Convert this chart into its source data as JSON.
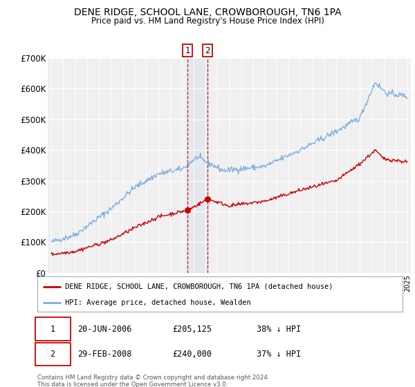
{
  "title": "DENE RIDGE, SCHOOL LANE, CROWBOROUGH, TN6 1PA",
  "subtitle": "Price paid vs. HM Land Registry's House Price Index (HPI)",
  "red_label": "DENE RIDGE, SCHOOL LANE, CROWBOROUGH, TN6 1PA (detached house)",
  "blue_label": "HPI: Average price, detached house, Wealden",
  "transaction1_date": "20-JUN-2006",
  "transaction1_price": 205125,
  "transaction1_price_str": "£205,125",
  "transaction1_hpi": "38% ↓ HPI",
  "transaction2_date": "29-FEB-2008",
  "transaction2_price": 240000,
  "transaction2_price_str": "£240,000",
  "transaction2_hpi": "37% ↓ HPI",
  "footnote_line1": "Contains HM Land Registry data © Crown copyright and database right 2024.",
  "footnote_line2": "This data is licensed under the Open Government Licence v3.0.",
  "ylim": [
    0,
    700000
  ],
  "yticks": [
    0,
    100000,
    200000,
    300000,
    400000,
    500000,
    600000,
    700000
  ],
  "ytick_labels": [
    "£0",
    "£100K",
    "£200K",
    "£300K",
    "£400K",
    "£500K",
    "£600K",
    "£700K"
  ],
  "red_color": "#cc0000",
  "blue_color": "#7aabdc",
  "background_color": "#ffffff",
  "plot_bg_color": "#f0f0f0",
  "grid_color": "#ffffff",
  "transaction1_x": 2006.47,
  "transaction2_x": 2008.16
}
